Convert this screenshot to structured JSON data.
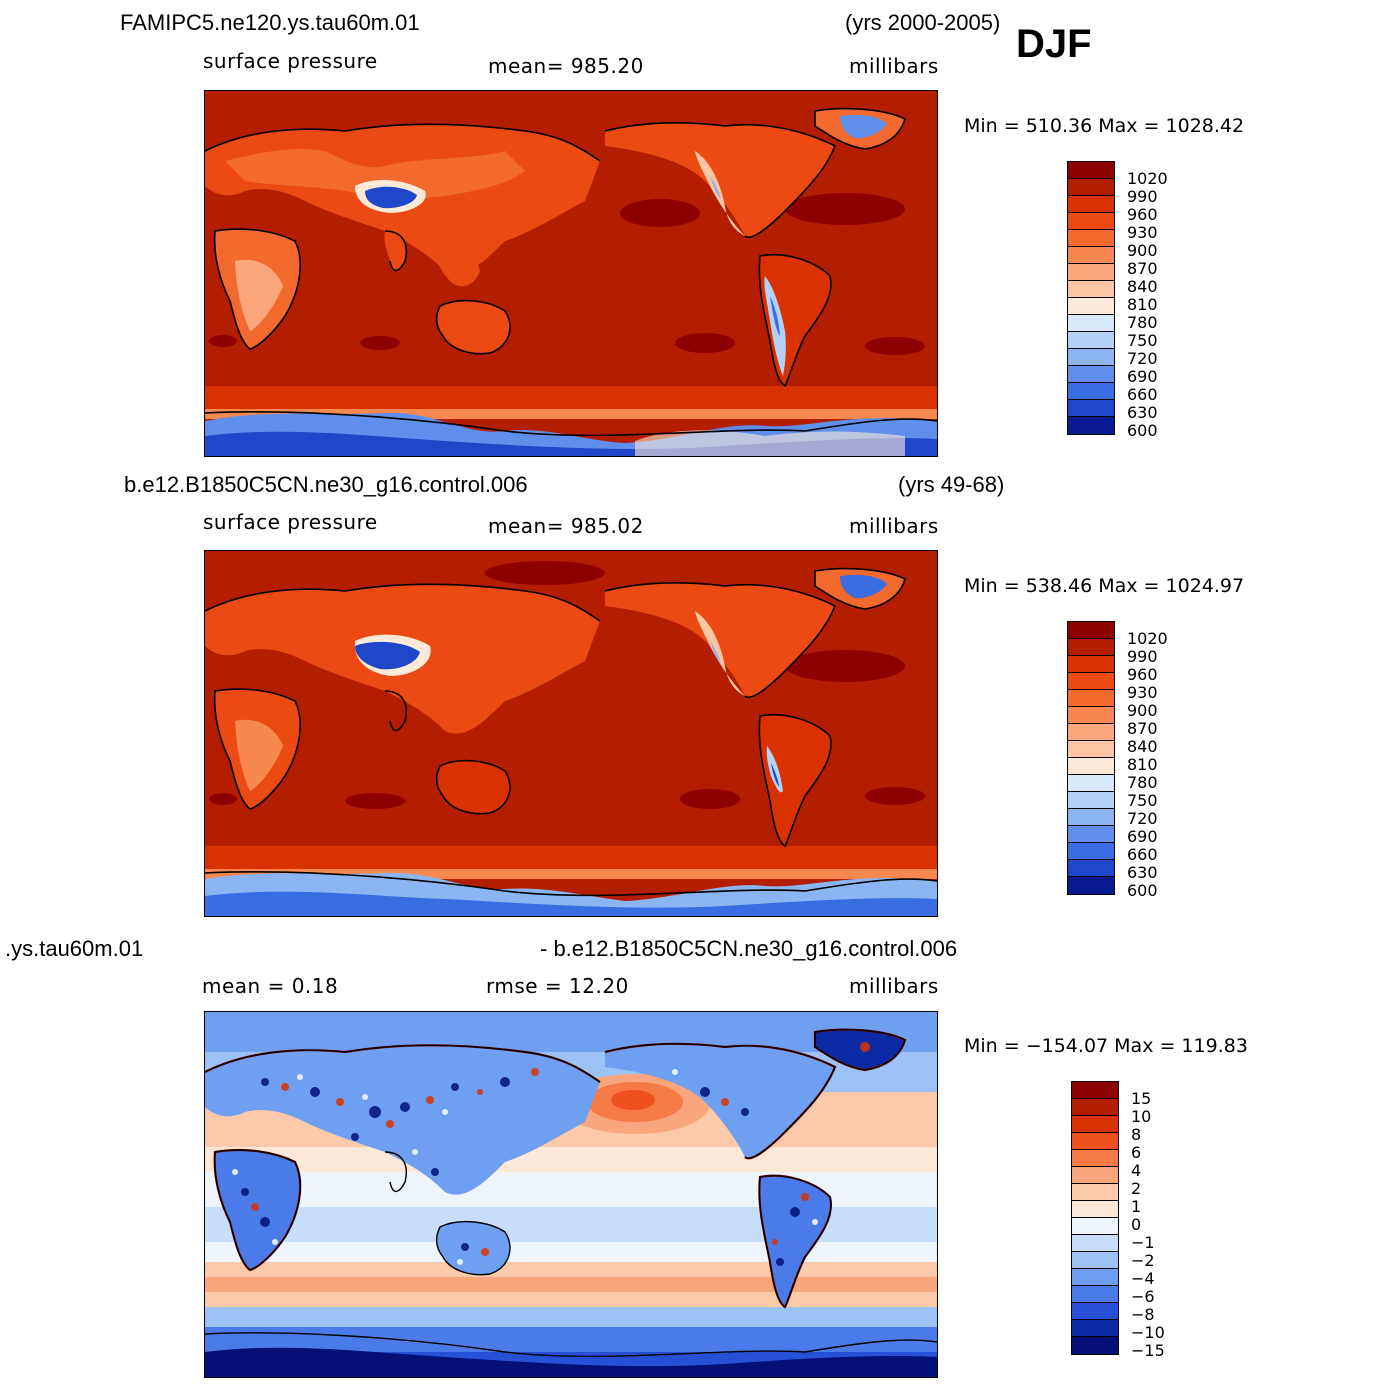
{
  "season": "DJF",
  "panels": [
    {
      "case_name": "FAMIPC5.ne120.ys.tau60m.01",
      "years": "(yrs 2000-2005)",
      "left_label": "surface pressure",
      "center_label": "mean=  985.20",
      "units": "millibars",
      "minmax": "Min = 510.36 Max = 1028.42",
      "colorbar_levels": [
        "1020",
        "990",
        "960",
        "930",
        "900",
        "870",
        "840",
        "810",
        "780",
        "750",
        "720",
        "690",
        "660",
        "630",
        "600"
      ],
      "colorbar_colors": [
        "#8c0000",
        "#b31d00",
        "#d93200",
        "#eb4a12",
        "#f26a2e",
        "#f7884f",
        "#fba77b",
        "#fcc6a4",
        "#fde9d8",
        "#d9e9fb",
        "#b4d2f7",
        "#8ab5f2",
        "#5f8fea",
        "#3a6de2",
        "#1f47c9",
        "#081a8f"
      ]
    },
    {
      "case_name": "b.e12.B1850C5CN.ne30_g16.control.006",
      "years": "(yrs 49-68)",
      "left_label": "surface pressure",
      "center_label": "mean=  985.02",
      "units": "millibars",
      "minmax": "Min = 538.46 Max = 1024.97",
      "colorbar_levels": [
        "1020",
        "990",
        "960",
        "930",
        "900",
        "870",
        "840",
        "810",
        "780",
        "750",
        "720",
        "690",
        "660",
        "630",
        "600"
      ],
      "colorbar_colors": [
        "#8c0000",
        "#b31d00",
        "#d93200",
        "#eb4a12",
        "#f26a2e",
        "#f7884f",
        "#fba77b",
        "#fcc6a4",
        "#fde9d8",
        "#d9e9fb",
        "#b4d2f7",
        "#8ab5f2",
        "#5f8fea",
        "#3a6de2",
        "#1f47c9",
        "#081a8f"
      ]
    },
    {
      "case_name_left": ".ys.tau60m.01",
      "case_name_right": "- b.e12.B1850C5CN.ne30_g16.control.006",
      "left_label": "mean =    0.18",
      "center_label": "rmse =   12.20",
      "units": "millibars",
      "minmax": "Min = −154.07 Max = 119.83",
      "colorbar_levels": [
        "15",
        "10",
        "8",
        "6",
        "4",
        "2",
        "1",
        "0",
        "−1",
        "−2",
        "−4",
        "−6",
        "−8",
        "−10",
        "−15"
      ],
      "colorbar_colors": [
        "#8c0000",
        "#b31d00",
        "#d93200",
        "#ee5020",
        "#f57a45",
        "#f9a57d",
        "#fcc9ab",
        "#fde8d8",
        "#eef5fd",
        "#c7defb",
        "#9cc2f6",
        "#6f9ff0",
        "#4a7be8",
        "#2650d6",
        "#0d2aa6",
        "#040f78"
      ]
    }
  ]
}
